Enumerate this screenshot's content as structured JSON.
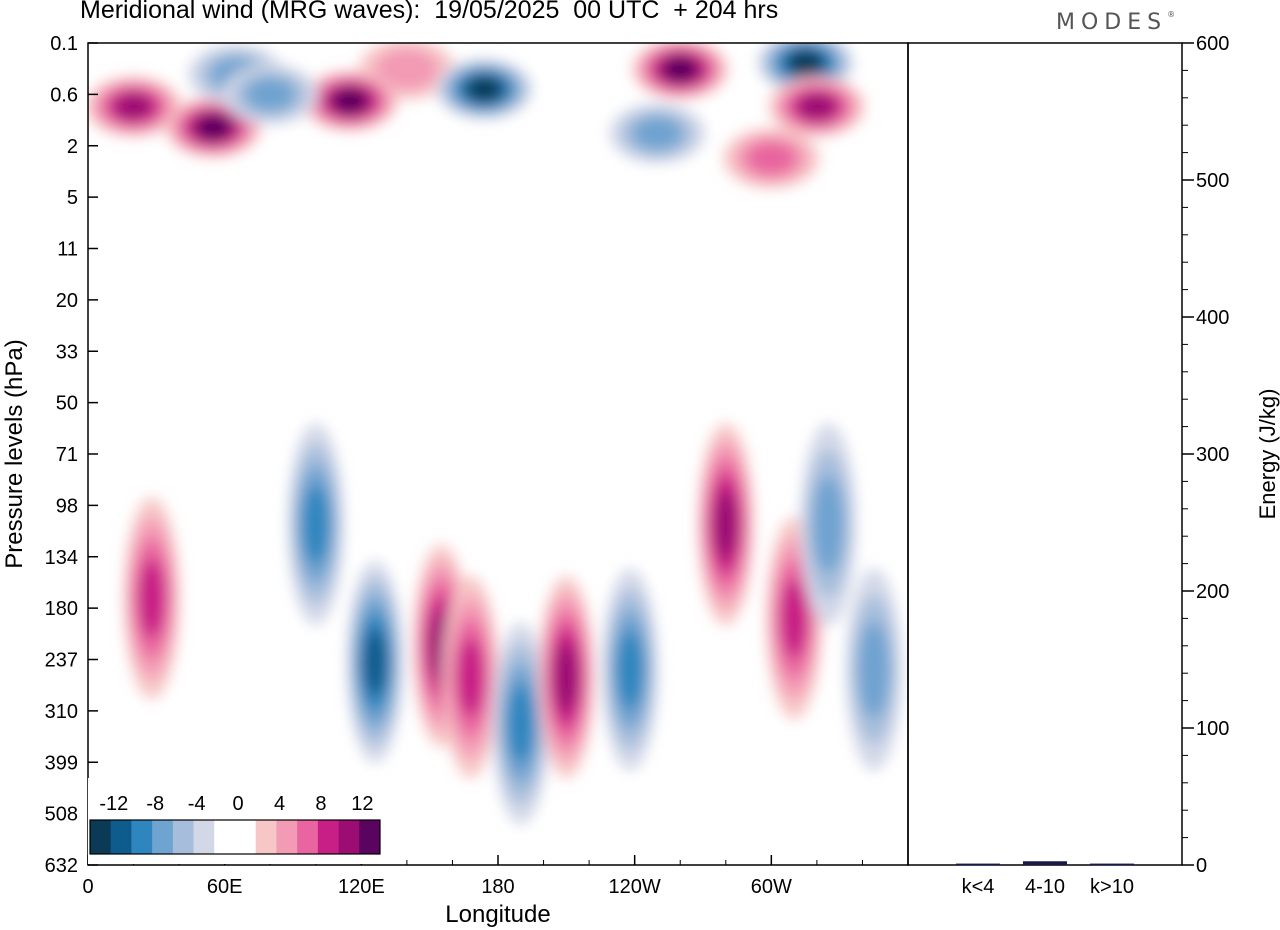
{
  "title": "Meridional wind (MRG waves):  19/05/2025  00 UTC  + 204 hrs",
  "brand": "MODES",
  "colors": {
    "neg6": "#0b3a57",
    "neg5": "#0e5c8e",
    "neg4": "#2f86bf",
    "neg3": "#6fa3d0",
    "neg2": "#a6bedc",
    "neg1": "#d3d8e8",
    "zero": "#ffffff",
    "pos1": "#f7c6c6",
    "pos2": "#f39ab5",
    "pos3": "#e8659f",
    "pos4": "#c81f86",
    "pos5": "#9c0d73",
    "pos6": "#5a045f"
  },
  "chart_data": [
    {
      "type": "heatmap",
      "xlabel": "Longitude",
      "ylabel": "Pressure levels (hPa)",
      "x_ticks": [
        "0",
        "60E",
        "120E",
        "180",
        "120W",
        "60W"
      ],
      "x_tick_values": [
        0,
        60,
        120,
        180,
        240,
        300
      ],
      "xlim": [
        0,
        360
      ],
      "y_ticks": [
        "0.1",
        "0.6",
        "2",
        "5",
        "11",
        "20",
        "33",
        "50",
        "71",
        "98",
        "134",
        "180",
        "237",
        "310",
        "399",
        "508",
        "632"
      ],
      "colorbar": {
        "labels": [
          "-12",
          "-8",
          "-4",
          "0",
          "4",
          "8",
          "12"
        ],
        "levels": [
          -14,
          -12,
          -10,
          -8,
          -6,
          -4,
          -2,
          2,
          4,
          6,
          8,
          10,
          12,
          14
        ]
      },
      "features": [
        {
          "lon": 140,
          "p": 0.25,
          "v": 4
        },
        {
          "lon": 174,
          "p": 0.5,
          "v": -14
        },
        {
          "lon": 260,
          "p": 0.25,
          "v": 14
        },
        {
          "lon": 315,
          "p": 0.2,
          "v": -12
        },
        {
          "lon": 20,
          "p": 0.8,
          "v": 9
        },
        {
          "lon": 55,
          "p": 1.3,
          "v": 11
        },
        {
          "lon": 115,
          "p": 0.7,
          "v": 11
        },
        {
          "lon": 65,
          "p": 0.3,
          "v": -5
        },
        {
          "lon": 80,
          "p": 0.6,
          "v": -6
        },
        {
          "lon": 250,
          "p": 1.5,
          "v": -6
        },
        {
          "lon": 320,
          "p": 0.8,
          "v": 10
        },
        {
          "lon": 300,
          "p": 2.5,
          "v": 5
        },
        {
          "lon": 28,
          "p": 170,
          "v": 8
        },
        {
          "lon": 100,
          "p": 110,
          "v": -7
        },
        {
          "lon": 126,
          "p": 240,
          "v": -10
        },
        {
          "lon": 155,
          "p": 220,
          "v": 9
        },
        {
          "lon": 168,
          "p": 260,
          "v": 8
        },
        {
          "lon": 190,
          "p": 330,
          "v": -8
        },
        {
          "lon": 210,
          "p": 260,
          "v": 10
        },
        {
          "lon": 238,
          "p": 250,
          "v": -7
        },
        {
          "lon": 280,
          "p": 110,
          "v": 9
        },
        {
          "lon": 310,
          "p": 190,
          "v": 8
        },
        {
          "lon": 325,
          "p": 110,
          "v": -5
        },
        {
          "lon": 345,
          "p": 250,
          "v": -6
        }
      ]
    },
    {
      "type": "bar",
      "categories": [
        "k<4",
        "4-10",
        "k>10"
      ],
      "values": [
        0.3,
        2,
        0.3
      ],
      "ylabel": "Energy (J/kg)",
      "ylim": [
        0,
        600
      ],
      "y_ticks": [
        "0",
        "100",
        "200",
        "300",
        "400",
        "500",
        "600"
      ]
    }
  ]
}
